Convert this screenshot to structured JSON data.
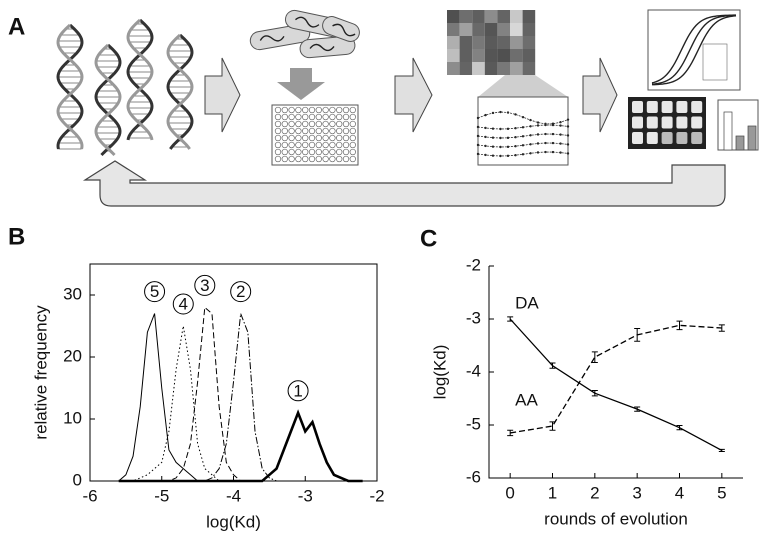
{
  "schematic": {
    "panel_label": "A"
  },
  "chart_data": [
    {
      "type": "line",
      "panel_label": "B",
      "xlabel": "log(Kd)",
      "ylabel": "relative frequency",
      "xlim": [
        -6,
        -2
      ],
      "xticks": [
        -6,
        -5,
        -4,
        -3,
        -2
      ],
      "ylim": [
        0,
        35
      ],
      "yticks": [
        0,
        10,
        20,
        30
      ],
      "x": [
        -5.6,
        -5.5,
        -5.4,
        -5.3,
        -5.2,
        -5.1,
        -5.0,
        -4.9,
        -4.8,
        -4.7,
        -4.6,
        -4.5,
        -4.4,
        -4.3,
        -4.2,
        -4.1,
        -4.0,
        -3.9,
        -3.8,
        -3.7,
        -3.6,
        -3.5,
        -3.4,
        -3.3,
        -3.2,
        -3.1,
        -3.0,
        -2.9,
        -2.8,
        -2.7,
        -2.6,
        -2.5,
        -2.4,
        -2.3,
        -2.2
      ],
      "series": [
        {
          "name": "1",
          "color": "#000000",
          "line_style": "solid",
          "line_width": 2.6,
          "values": [
            0,
            0,
            0,
            0,
            0,
            0,
            0,
            0,
            0,
            0,
            0,
            0,
            0,
            0,
            0,
            0,
            0,
            0,
            0,
            0,
            0,
            1,
            2,
            5,
            8,
            11,
            8,
            9.5,
            6,
            3,
            1,
            0.5,
            0,
            0,
            0
          ]
        },
        {
          "name": "2",
          "color": "#000000",
          "line_style": "dashdot",
          "line_width": 1,
          "values": [
            0,
            0,
            0,
            0,
            0,
            0,
            0,
            0,
            0,
            0,
            0,
            0,
            0,
            0.5,
            2,
            6,
            16,
            27,
            24,
            8,
            2,
            0.5,
            0,
            0,
            0,
            0,
            0,
            0,
            0,
            0,
            0,
            0,
            0,
            0,
            0
          ]
        },
        {
          "name": "3",
          "color": "#000000",
          "line_style": "dashed",
          "line_width": 1,
          "values": [
            0,
            0,
            0,
            0,
            0,
            0,
            0,
            0,
            0.5,
            2,
            6,
            16,
            28,
            27,
            12,
            3,
            1,
            0,
            0,
            0,
            0,
            0,
            0,
            0,
            0,
            0,
            0,
            0,
            0,
            0,
            0,
            0,
            0,
            0,
            0
          ]
        },
        {
          "name": "4",
          "color": "#000000",
          "line_style": "dotted",
          "line_width": 1,
          "values": [
            0,
            0,
            0,
            0.5,
            1,
            2,
            3,
            8,
            18,
            25,
            18,
            6,
            2,
            1,
            0,
            0,
            0,
            0,
            0,
            0,
            0,
            0,
            0,
            0,
            0,
            0,
            0,
            0,
            0,
            0,
            0,
            0,
            0,
            0,
            0
          ]
        },
        {
          "name": "5",
          "color": "#000000",
          "line_style": "solid",
          "line_width": 1,
          "values": [
            0,
            1,
            4,
            12,
            24,
            27,
            15,
            5,
            3,
            2,
            1,
            0,
            0,
            0,
            0,
            0,
            0,
            0,
            0,
            0,
            0,
            0,
            0,
            0,
            0,
            0,
            0,
            0,
            0,
            0,
            0,
            0,
            0,
            0,
            0
          ]
        }
      ]
    },
    {
      "type": "errorline",
      "panel_label": "C",
      "xlabel": "rounds of evolution",
      "ylabel": "log(Kd)",
      "xlim": [
        -0.5,
        5.5
      ],
      "xticks": [
        0,
        1,
        2,
        3,
        4,
        5
      ],
      "ylim": [
        -6,
        -2
      ],
      "yticks": [
        -6,
        -5,
        -4,
        -3,
        -2
      ],
      "x": [
        0,
        1,
        2,
        3,
        4,
        5
      ],
      "series": [
        {
          "name": "DA",
          "color": "#000000",
          "line_style": "solid",
          "values": [
            -3.0,
            -3.88,
            -4.4,
            -4.7,
            -5.05,
            -5.48
          ],
          "errors": [
            0.04,
            0.05,
            0.05,
            0.04,
            0.04,
            0.02
          ]
        },
        {
          "name": "AA",
          "color": "#000000",
          "line_style": "dashed",
          "values": [
            -5.15,
            -5.02,
            -3.72,
            -3.3,
            -3.12,
            -3.17
          ],
          "errors": [
            0.05,
            0.08,
            0.1,
            0.12,
            0.08,
            0.06
          ]
        }
      ]
    }
  ]
}
